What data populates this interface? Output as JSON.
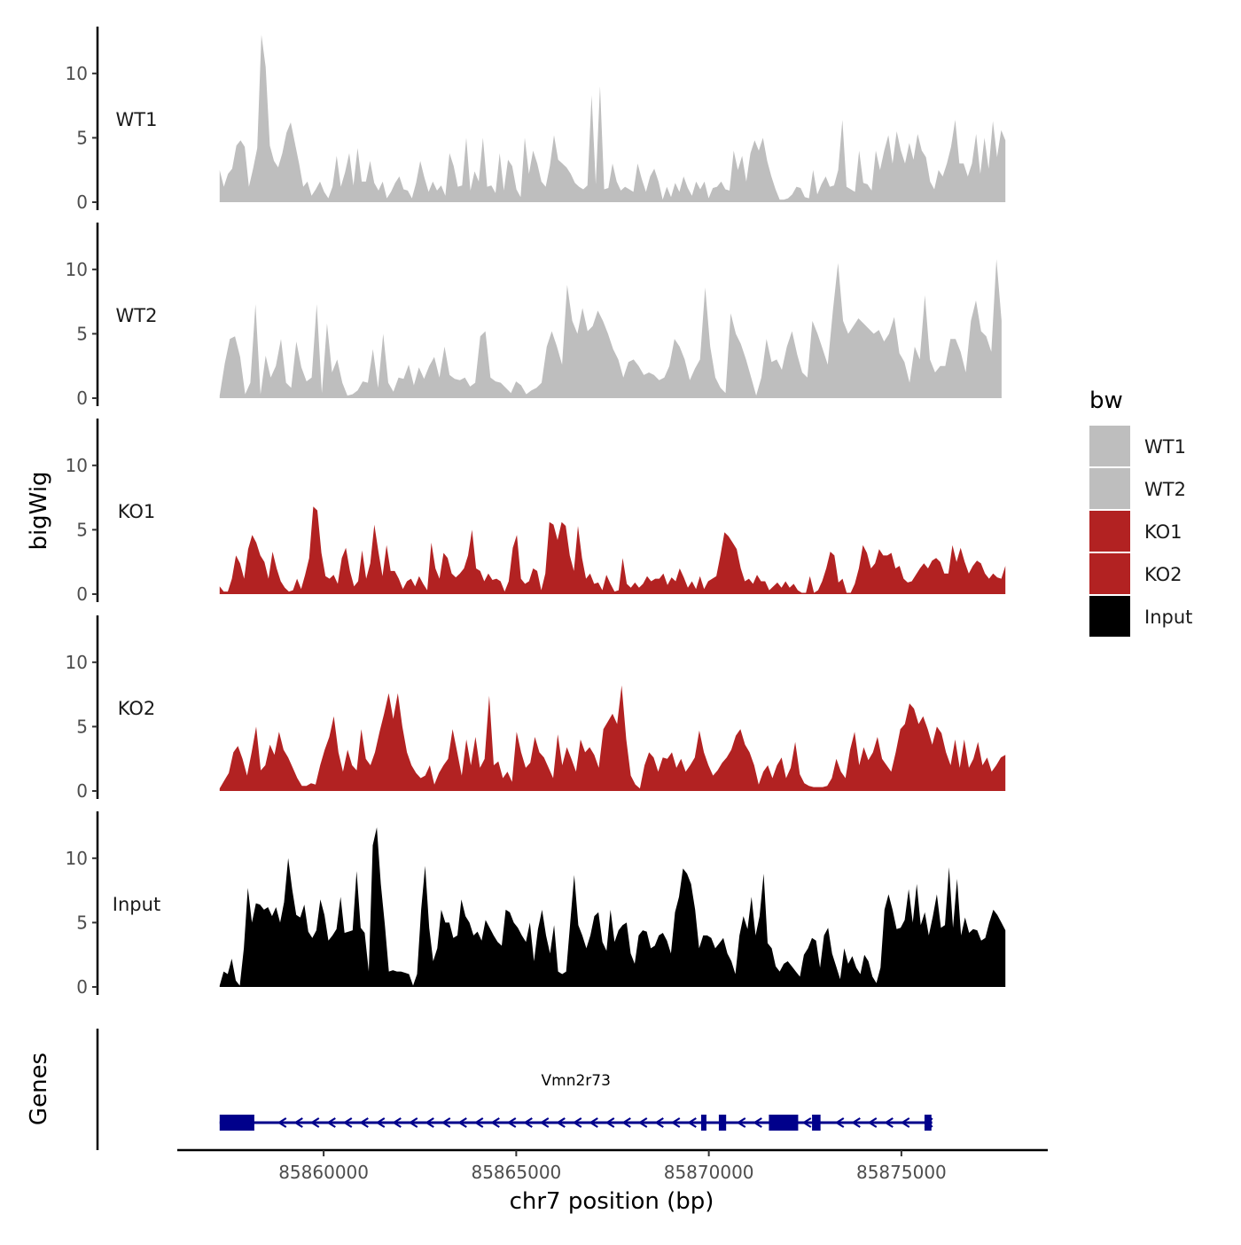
{
  "chart_data": {
    "type": "area",
    "title": "",
    "xlabel": "chr7 position (bp)",
    "ylabel": "bigWig",
    "genes_label": "Genes",
    "xlim": [
      85856200,
      85878800
    ],
    "x_ticks": [
      {
        "value": 85860000,
        "label": "85860000"
      },
      {
        "value": 85865000,
        "label": "85865000"
      },
      {
        "value": 85870000,
        "label": "85870000"
      },
      {
        "value": 85875000,
        "label": "85875000"
      }
    ],
    "ylim": [
      0,
      13.5
    ],
    "y_ticks": [
      {
        "value": 0,
        "label": "0"
      },
      {
        "value": 5,
        "label": "5"
      },
      {
        "value": 10,
        "label": "10"
      }
    ],
    "legend": {
      "title": "bw",
      "position": "right",
      "entries": [
        {
          "name": "WT1",
          "color": "#bebebe"
        },
        {
          "name": "WT2",
          "color": "#bebebe"
        },
        {
          "name": "KO1",
          "color": "#b22222"
        },
        {
          "name": "KO2",
          "color": "#b22222"
        },
        {
          "name": "Input",
          "color": "#000000"
        }
      ]
    },
    "series": [
      {
        "name": "WT1",
        "color": "#bebebe",
        "x_start": 85857300,
        "x_end": 85877700,
        "values": [
          2.5,
          1.2,
          2.2,
          2.6,
          4.4,
          4.8,
          4.3,
          1.2,
          2.6,
          4.2,
          13.0,
          10.5,
          4.4,
          3.2,
          2.7,
          3.8,
          5.4,
          6.2,
          4.6,
          3.0,
          1.2,
          1.6,
          0.5,
          1.0,
          1.6,
          0.8,
          0.3,
          1.2,
          3.6,
          1.2,
          2.3,
          3.8,
          1.3,
          4.2,
          1.6,
          1.6,
          3.2,
          1.5,
          0.9,
          1.6,
          0.3,
          0.8,
          1.5,
          2.0,
          1.0,
          0.9,
          0.3,
          1.5,
          3.2,
          1.9,
          0.8,
          1.6,
          0.9,
          1.3,
          0.5,
          3.8,
          2.8,
          1.2,
          1.3,
          5.0,
          0.9,
          2.4,
          1.6,
          5.0,
          1.2,
          1.3,
          0.7,
          3.8,
          0.9,
          3.3,
          2.8,
          1.0,
          0.4,
          5.0,
          2.2,
          4.0,
          3.0,
          1.6,
          1.2,
          2.8,
          5.2,
          3.3,
          3.0,
          2.7,
          2.2,
          1.5,
          1.2,
          1.0,
          1.3,
          8.3,
          1.4,
          9.0,
          1.0,
          1.1,
          3.0,
          1.6,
          0.9,
          1.2,
          1.0,
          0.8,
          3.0,
          1.8,
          0.8,
          2.0,
          2.6,
          1.6,
          0.2,
          1.2,
          0.4,
          1.5,
          0.8,
          2.0,
          1.1,
          0.5,
          1.6,
          1.0,
          1.6,
          0.3,
          1.1,
          1.2,
          1.6,
          1.0,
          0.9,
          4.0,
          2.5,
          3.6,
          1.6,
          3.8,
          4.8,
          4.0,
          5.0,
          3.2,
          2.0,
          1.0,
          0.2,
          0.2,
          0.3,
          0.6,
          1.2,
          1.1,
          0.4,
          0.3,
          2.5,
          0.6,
          1.4,
          2.0,
          1.2,
          1.3,
          2.5,
          6.4,
          1.2,
          1.0,
          0.8,
          4.0,
          1.5,
          1.4,
          0.9,
          4.0,
          2.5,
          4.0,
          5.2,
          3.0,
          5.5,
          4.0,
          3.0,
          4.6,
          3.3,
          5.3,
          4.0,
          3.5,
          1.6,
          1.0,
          2.5,
          2.0,
          3.0,
          4.3,
          6.4,
          3.0,
          3.0,
          2.0,
          3.0,
          5.3,
          2.2,
          5.0,
          2.6,
          6.3,
          3.5,
          5.6,
          4.8
        ]
      },
      {
        "name": "WT2",
        "color": "#bebebe",
        "x_start": 85857300,
        "x_end": 85877600,
        "values": [
          0.2,
          2.7,
          4.6,
          4.8,
          3.2,
          0.3,
          1.2,
          7.3,
          0.3,
          3.3,
          1.6,
          2.5,
          4.6,
          1.2,
          0.8,
          4.4,
          2.4,
          1.3,
          1.6,
          7.3,
          0.4,
          5.8,
          2.0,
          3.0,
          1.2,
          0.2,
          0.3,
          0.6,
          1.3,
          1.2,
          3.8,
          0.8,
          5.0,
          1.2,
          0.5,
          1.6,
          1.5,
          2.6,
          1.0,
          2.4,
          1.5,
          2.5,
          3.2,
          1.6,
          4.0,
          1.8,
          1.5,
          1.4,
          1.6,
          0.9,
          1.2,
          4.8,
          5.2,
          1.6,
          1.3,
          1.2,
          0.8,
          0.4,
          1.3,
          1.0,
          0.3,
          0.6,
          0.8,
          1.2,
          4.0,
          5.2,
          4.0,
          2.6,
          8.8,
          6.0,
          5.0,
          7.0,
          5.2,
          5.6,
          6.8,
          6.0,
          5.0,
          3.8,
          3.0,
          1.6,
          2.8,
          3.0,
          2.5,
          1.8,
          2.0,
          1.8,
          1.4,
          1.6,
          2.5,
          4.6,
          4.0,
          3.0,
          1.4,
          2.3,
          3.0,
          8.6,
          4.0,
          1.6,
          0.8,
          0.4,
          6.6,
          5.0,
          4.2,
          3.0,
          1.6,
          0.2,
          1.6,
          4.6,
          2.8,
          3.0,
          2.2,
          4.0,
          5.2,
          3.4,
          2.0,
          1.6,
          6.0,
          5.0,
          3.8,
          2.6,
          6.8,
          10.5,
          6.0,
          5.0,
          5.6,
          6.2,
          5.8,
          5.4,
          5.0,
          5.3,
          4.4,
          5.0,
          6.3,
          3.5,
          2.8,
          1.2,
          4.0,
          3.0,
          8.0,
          3.0,
          2.0,
          2.5,
          2.5,
          4.6,
          4.6,
          3.6,
          2.0,
          6.0,
          7.6,
          5.2,
          4.8,
          3.6,
          10.8,
          6.0
        ]
      },
      {
        "name": "KO1",
        "color": "#b22222",
        "x_start": 85857300,
        "x_end": 85877700,
        "values": [
          0.6,
          0.2,
          0.2,
          1.2,
          3.0,
          2.4,
          1.2,
          3.5,
          4.6,
          4.0,
          3.0,
          2.5,
          1.2,
          3.3,
          2.0,
          1.0,
          0.5,
          0.2,
          0.3,
          1.2,
          0.4,
          1.5,
          2.8,
          6.8,
          6.5,
          3.2,
          1.4,
          1.2,
          1.5,
          0.8,
          2.8,
          3.6,
          1.8,
          0.6,
          1.0,
          3.4,
          1.2,
          2.4,
          5.4,
          3.3,
          1.4,
          3.8,
          1.8,
          1.8,
          1.2,
          0.4,
          1.0,
          1.2,
          0.6,
          1.4,
          0.8,
          0.3,
          4.0,
          2.0,
          1.2,
          3.2,
          2.8,
          1.6,
          1.3,
          1.6,
          2.0,
          3.0,
          5.0,
          2.0,
          1.8,
          1.0,
          1.6,
          1.1,
          1.2,
          1.0,
          0.2,
          1.0,
          3.6,
          4.6,
          1.2,
          0.8,
          1.0,
          2.0,
          1.8,
          0.3,
          1.6,
          5.6,
          5.4,
          4.2,
          5.6,
          5.3,
          3.0,
          1.8,
          5.3,
          2.8,
          1.2,
          1.6,
          0.8,
          0.9,
          0.3,
          1.5,
          0.8,
          0.2,
          0.3,
          2.8,
          0.8,
          0.5,
          0.9,
          0.5,
          0.8,
          1.4,
          1.0,
          1.2,
          1.2,
          1.6,
          0.7,
          1.3,
          1.0,
          2.0,
          1.3,
          0.5,
          1.0,
          0.4,
          1.4,
          0.4,
          1.0,
          1.2,
          1.4,
          3.0,
          4.8,
          4.5,
          4.0,
          3.5,
          2.0,
          1.0,
          1.2,
          0.8,
          1.5,
          1.0,
          1.0,
          0.3,
          0.6,
          0.9,
          0.5,
          1.0,
          0.5,
          0.8,
          0.3,
          0.1,
          0.1,
          1.4,
          0.1,
          0.3,
          1.0,
          2.0,
          3.3,
          3.0,
          0.9,
          1.2,
          0.1,
          0.1,
          0.8,
          2.0,
          3.8,
          3.2,
          2.0,
          2.4,
          3.5,
          3.0,
          3.0,
          3.2,
          2.0,
          2.2,
          1.2,
          0.9,
          1.0,
          1.5,
          2.0,
          2.4,
          2.0,
          2.6,
          2.8,
          2.5,
          1.6,
          1.6,
          3.8,
          2.5,
          3.6,
          2.5,
          1.6,
          2.2,
          2.6,
          2.4,
          1.6,
          1.2,
          1.6,
          1.3,
          1.2,
          2.2
        ]
      },
      {
        "name": "KO2",
        "color": "#b22222",
        "x_start": 85857300,
        "x_end": 85877700,
        "values": [
          0.2,
          0.8,
          1.4,
          3.0,
          3.5,
          2.5,
          1.2,
          3.0,
          5.0,
          1.6,
          2.0,
          3.6,
          2.8,
          4.6,
          3.2,
          2.6,
          1.8,
          1.0,
          0.4,
          0.4,
          0.6,
          0.5,
          2.0,
          3.2,
          4.2,
          5.8,
          3.0,
          1.5,
          3.2,
          2.0,
          1.6,
          4.8,
          2.5,
          2.0,
          3.0,
          4.6,
          6.0,
          7.6,
          5.6,
          7.6,
          5.0,
          3.0,
          2.0,
          1.4,
          1.0,
          1.2,
          2.0,
          0.5,
          1.4,
          2.0,
          2.5,
          4.8,
          3.0,
          1.2,
          4.0,
          2.0,
          4.2,
          1.8,
          2.5,
          7.4,
          2.0,
          2.3,
          1.0,
          1.5,
          0.7,
          4.6,
          3.0,
          1.8,
          2.2,
          4.2,
          3.0,
          2.6,
          1.8,
          1.0,
          4.4,
          2.0,
          3.4,
          2.5,
          1.5,
          4.0,
          3.0,
          3.4,
          2.8,
          1.8,
          4.8,
          5.4,
          6.0,
          5.2,
          8.2,
          4.0,
          1.2,
          0.5,
          0.2,
          2.0,
          3.0,
          2.6,
          1.5,
          2.6,
          2.5,
          3.0,
          1.8,
          2.5,
          1.5,
          2.0,
          2.6,
          4.7,
          3.0,
          2.0,
          1.2,
          1.6,
          2.2,
          2.6,
          3.2,
          4.3,
          4.8,
          3.6,
          3.0,
          2.0,
          0.5,
          1.5,
          2.0,
          1.0,
          2.0,
          2.6,
          1.0,
          1.8,
          3.8,
          1.3,
          0.6,
          0.4,
          0.3,
          0.3,
          0.3,
          0.4,
          1.0,
          2.5,
          1.5,
          1.0,
          3.2,
          4.6,
          2.0,
          3.4,
          2.4,
          3.0,
          4.2,
          2.5,
          2.0,
          1.5,
          3.0,
          4.8,
          5.2,
          6.8,
          6.4,
          5.2,
          5.8,
          4.8,
          3.6,
          5.0,
          4.5,
          3.0,
          2.0,
          4.0,
          1.8,
          4.0,
          1.8,
          2.5,
          3.8,
          2.0,
          2.6,
          1.5,
          2.0,
          2.6,
          2.8
        ]
      },
      {
        "name": "Input",
        "color": "#000000",
        "x_start": 85857300,
        "x_end": 85877700,
        "values": [
          0.1,
          1.2,
          1.0,
          2.2,
          0.5,
          0.1,
          3.0,
          7.7,
          5.0,
          6.5,
          6.4,
          6.0,
          6.2,
          5.5,
          6.2,
          5.0,
          6.6,
          10.0,
          7.6,
          5.6,
          5.4,
          6.4,
          4.3,
          3.8,
          4.4,
          6.8,
          5.6,
          3.6,
          4.0,
          4.5,
          7.0,
          4.2,
          4.3,
          4.4,
          9.0,
          4.6,
          4.2,
          1.2,
          11.0,
          12.4,
          8.0,
          4.8,
          1.2,
          1.3,
          1.2,
          1.2,
          1.1,
          1.0,
          0.1,
          1.0,
          6.0,
          9.4,
          4.6,
          2.0,
          3.0,
          6.0,
          5.0,
          5.0,
          3.8,
          4.0,
          6.8,
          5.5,
          5.0,
          4.0,
          4.3,
          3.6,
          5.2,
          4.6,
          4.0,
          3.5,
          3.2,
          6.0,
          5.8,
          5.0,
          4.6,
          4.0,
          3.5,
          5.0,
          2.0,
          4.5,
          6.0,
          4.0,
          2.6,
          4.8,
          1.2,
          1.0,
          1.2,
          5.0,
          8.7,
          4.8,
          4.0,
          3.0,
          4.0,
          5.5,
          5.8,
          3.5,
          2.8,
          6.0,
          3.5,
          4.4,
          4.8,
          5.0,
          2.6,
          1.8,
          4.0,
          4.4,
          4.3,
          3.0,
          3.2,
          4.0,
          4.2,
          3.6,
          2.6,
          5.8,
          7.0,
          9.2,
          8.8,
          8.0,
          6.0,
          3.0,
          4.0,
          4.0,
          3.8,
          3.0,
          3.4,
          3.8,
          2.6,
          2.0,
          1.0,
          4.0,
          5.5,
          4.5,
          7.0,
          4.0,
          5.5,
          8.8,
          3.4,
          3.0,
          1.6,
          1.2,
          1.8,
          2.0,
          1.6,
          1.2,
          0.8,
          2.5,
          3.0,
          3.8,
          3.6,
          1.5,
          4.0,
          4.6,
          2.6,
          1.6,
          0.6,
          3.0,
          1.8,
          2.4,
          1.5,
          1.0,
          2.5,
          2.0,
          0.8,
          0.3,
          1.5,
          6.0,
          7.2,
          6.0,
          4.5,
          4.6,
          5.2,
          7.6,
          5.0,
          8.0,
          4.8,
          5.8,
          4.0,
          5.5,
          7.2,
          4.6,
          4.8,
          9.3,
          4.6,
          8.4,
          4.0,
          5.4,
          4.2,
          4.5,
          4.4,
          3.6,
          3.8,
          5.0,
          6.0,
          5.6,
          5.0,
          4.4
        ]
      }
    ],
    "gene_track": {
      "gene": "Vmn2r73",
      "color": "#00008b",
      "strand": "-",
      "x_start": 85857300,
      "x_end": 85875800,
      "exons": [
        {
          "start": 85857300,
          "end": 85858200
        },
        {
          "start": 85869800,
          "end": 85869920
        },
        {
          "start": 85870260,
          "end": 85870450
        },
        {
          "start": 85871560,
          "end": 85872320
        },
        {
          "start": 85872680,
          "end": 85872900
        },
        {
          "start": 85875600,
          "end": 85875780
        }
      ]
    }
  }
}
